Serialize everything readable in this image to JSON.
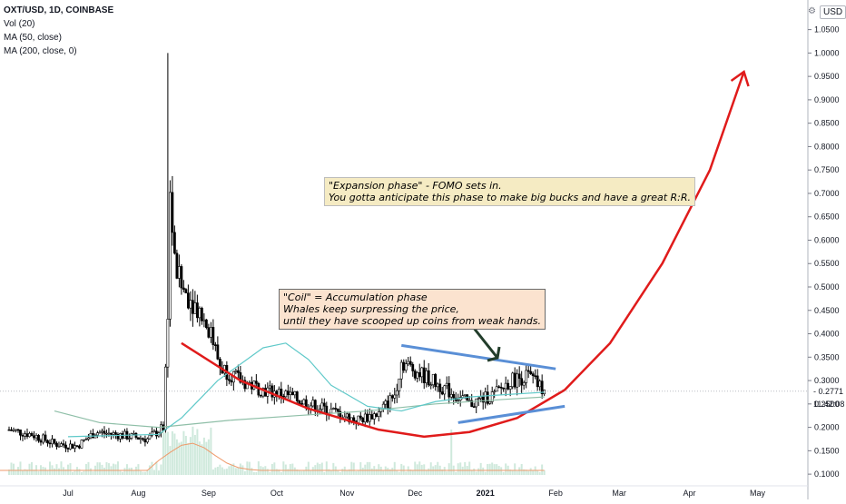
{
  "legend": {
    "symbol": "OXT/USD, 1D, COINBASE",
    "indicators": [
      "Vol (20)",
      "MA (50, close)",
      "MA (200, close, 0)"
    ]
  },
  "currency_label": "USD",
  "current_price": "0.2771",
  "countdown": "11:42:08",
  "annotations": {
    "coil": [
      "\"Coil\" = Accumulation phase",
      "Whales keep surpressing the price,",
      "until they have scooped up coins from weak hands."
    ],
    "expansion": [
      "\"Expansion phase\" - FOMO sets in.",
      "You gotta anticipate this phase to make big bucks and have a great R:R."
    ]
  },
  "colors": {
    "up_candle": "#000000",
    "down_candle": "#000000",
    "ma50": "#5fc9c9",
    "ma200": "#8fbfa8",
    "vol_ma": "#ef9a6b",
    "vol_bar": "#cfe9dc",
    "arc": "#e01b1b",
    "trendline": "#5a8fd6",
    "arrow": "#223d2b"
  },
  "chart_data": {
    "type": "candlestick",
    "title": "OXT/USD, 1D, COINBASE",
    "x_ticks": [
      "Jul",
      "Aug",
      "Sep",
      "Oct",
      "Nov",
      "Dec",
      "2021",
      "Feb",
      "Mar",
      "Apr",
      "May"
    ],
    "x_tick_dates": [
      "2020-07-01",
      "2020-08-01",
      "2020-09-01",
      "2020-10-01",
      "2020-11-01",
      "2020-12-01",
      "2021-01-01",
      "2021-02-01",
      "2021-03-01",
      "2021-04-01",
      "2021-05-01"
    ],
    "y_ticks": [
      0.1,
      0.15,
      0.2,
      0.25,
      0.3,
      0.35,
      0.4,
      0.45,
      0.5,
      0.55,
      0.6,
      0.65,
      0.7,
      0.75,
      0.8,
      0.85,
      0.9,
      0.95,
      1.0,
      1.05
    ],
    "y_tick_labels": [
      "0.1000",
      "0.1500",
      "0.2000",
      "0.2500",
      "0.3000",
      "0.3500",
      "0.4000",
      "0.4500",
      "0.5000",
      "0.5500",
      "0.6000",
      "0.6500",
      "0.7000",
      "0.7500",
      "0.8000",
      "0.8500",
      "0.9000",
      "0.9500",
      "1.0000",
      "1.0500"
    ],
    "ylim": [
      0.075,
      1.09
    ],
    "close_series": [
      {
        "date": "2020-06-05",
        "close": 0.195
      },
      {
        "date": "2020-06-15",
        "close": 0.185
      },
      {
        "date": "2020-06-25",
        "close": 0.165
      },
      {
        "date": "2020-07-05",
        "close": 0.16
      },
      {
        "date": "2020-07-13",
        "close": 0.19
      },
      {
        "date": "2020-07-22",
        "close": 0.185
      },
      {
        "date": "2020-08-05",
        "close": 0.175
      },
      {
        "date": "2020-08-12",
        "close": 0.2
      },
      {
        "date": "2020-08-14",
        "close": 0.45
      },
      {
        "date": "2020-08-15",
        "close": 0.7
      },
      {
        "date": "2020-08-17",
        "close": 0.55
      },
      {
        "date": "2020-08-20",
        "close": 0.5
      },
      {
        "date": "2020-08-28",
        "close": 0.45
      },
      {
        "date": "2020-09-02",
        "close": 0.4
      },
      {
        "date": "2020-09-06",
        "close": 0.33
      },
      {
        "date": "2020-09-15",
        "close": 0.3
      },
      {
        "date": "2020-09-25",
        "close": 0.28
      },
      {
        "date": "2020-10-05",
        "close": 0.27
      },
      {
        "date": "2020-10-15",
        "close": 0.25
      },
      {
        "date": "2020-10-25",
        "close": 0.235
      },
      {
        "date": "2020-11-05",
        "close": 0.215
      },
      {
        "date": "2020-11-15",
        "close": 0.23
      },
      {
        "date": "2020-11-22",
        "close": 0.27
      },
      {
        "date": "2020-11-25",
        "close": 0.34
      },
      {
        "date": "2020-12-05",
        "close": 0.31
      },
      {
        "date": "2020-12-15",
        "close": 0.28
      },
      {
        "date": "2020-12-25",
        "close": 0.25
      },
      {
        "date": "2021-01-05",
        "close": 0.27
      },
      {
        "date": "2021-01-12",
        "close": 0.3
      },
      {
        "date": "2021-01-20",
        "close": 0.31
      },
      {
        "date": "2021-01-27",
        "close": 0.2771
      }
    ],
    "spike_high": 1.0,
    "ma50": [
      {
        "date": "2020-07-01",
        "value": 0.18
      },
      {
        "date": "2020-08-10",
        "value": 0.185
      },
      {
        "date": "2020-08-20",
        "value": 0.22
      },
      {
        "date": "2020-09-05",
        "value": 0.3
      },
      {
        "date": "2020-09-25",
        "value": 0.37
      },
      {
        "date": "2020-10-05",
        "value": 0.38
      },
      {
        "date": "2020-10-15",
        "value": 0.345
      },
      {
        "date": "2020-10-25",
        "value": 0.29
      },
      {
        "date": "2020-11-10",
        "value": 0.245
      },
      {
        "date": "2020-11-25",
        "value": 0.235
      },
      {
        "date": "2020-12-10",
        "value": 0.255
      },
      {
        "date": "2020-12-25",
        "value": 0.265
      },
      {
        "date": "2021-01-10",
        "value": 0.27
      },
      {
        "date": "2021-01-27",
        "value": 0.275
      }
    ],
    "ma200": [
      {
        "date": "2020-06-25",
        "value": 0.235
      },
      {
        "date": "2020-07-15",
        "value": 0.21
      },
      {
        "date": "2020-08-10",
        "value": 0.2
      },
      {
        "date": "2020-09-10",
        "value": 0.215
      },
      {
        "date": "2020-10-10",
        "value": 0.225
      },
      {
        "date": "2020-11-10",
        "value": 0.235
      },
      {
        "date": "2020-12-10",
        "value": 0.25
      },
      {
        "date": "2021-01-10",
        "value": 0.26
      },
      {
        "date": "2021-01-27",
        "value": 0.265
      }
    ],
    "drawings": {
      "accumulation_arc": [
        {
          "date": "2020-08-20",
          "value": 0.38
        },
        {
          "date": "2020-09-15",
          "value": 0.3
        },
        {
          "date": "2020-10-15",
          "value": 0.24
        },
        {
          "date": "2020-11-15",
          "value": 0.195
        },
        {
          "date": "2020-12-05",
          "value": 0.18
        },
        {
          "date": "2020-12-25",
          "value": 0.19
        },
        {
          "date": "2021-01-15",
          "value": 0.22
        },
        {
          "date": "2021-02-05",
          "value": 0.28
        },
        {
          "date": "2021-02-25",
          "value": 0.38
        },
        {
          "date": "2021-03-20",
          "value": 0.55
        },
        {
          "date": "2021-04-10",
          "value": 0.75
        },
        {
          "date": "2021-04-25",
          "value": 0.96
        }
      ],
      "upper_trendline": [
        {
          "date": "2020-11-25",
          "value": 0.375
        },
        {
          "date": "2021-02-01",
          "value": 0.325
        }
      ],
      "lower_trendline": [
        {
          "date": "2020-12-20",
          "value": 0.21
        },
        {
          "date": "2021-02-05",
          "value": 0.245
        }
      ]
    }
  }
}
